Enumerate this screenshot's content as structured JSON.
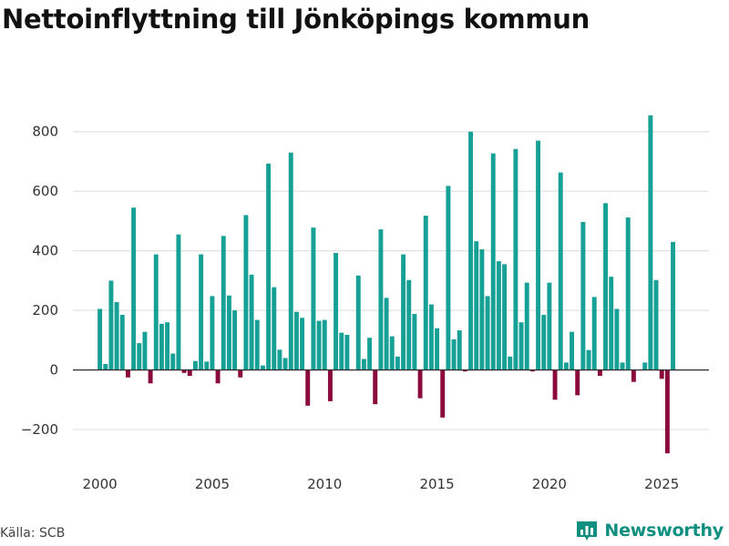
{
  "title": "Nettoinflyttning till Jönköpings kommun",
  "source": "Källa: SCB",
  "brand": {
    "name": "Newsworthy",
    "icon": "bar-chart-icon"
  },
  "colors": {
    "positive": "#16a096",
    "negative": "#8b0a3c",
    "grid": "#dcdcdc",
    "axis": "#333333"
  },
  "chart_data": {
    "type": "bar",
    "title": "Nettoinflyttning till Jönköpings kommun",
    "xlabel": "",
    "ylabel": "",
    "ylim": [
      -310,
      900
    ],
    "yticks": [
      -200,
      0,
      200,
      400,
      600,
      800
    ],
    "ytick_labels": [
      "−200",
      "0",
      "200",
      "400",
      "600",
      "800"
    ],
    "xlim": [
      1998.8,
      2027.1
    ],
    "xticks": [
      2000,
      2005,
      2010,
      2015,
      2020,
      2025
    ],
    "xtick_labels": [
      "2000",
      "2005",
      "2010",
      "2015",
      "2020",
      "2025"
    ],
    "period_start": 2000.0,
    "step": 0.25,
    "bar_width": 0.2,
    "grid": true,
    "legend": "none",
    "values": [
      205,
      20,
      300,
      228,
      185,
      -25,
      545,
      90,
      128,
      -45,
      388,
      155,
      160,
      55,
      455,
      -10,
      -20,
      30,
      388,
      28,
      248,
      -45,
      450,
      250,
      200,
      -25,
      520,
      320,
      168,
      15,
      693,
      278,
      68,
      40,
      730,
      195,
      175,
      -120,
      478,
      165,
      168,
      -105,
      393,
      125,
      118,
      0,
      317,
      37,
      108,
      -115,
      472,
      242,
      113,
      45,
      388,
      302,
      188,
      -95,
      518,
      220,
      140,
      -160,
      618,
      103,
      133,
      -5,
      800,
      432,
      405,
      248,
      727,
      365,
      355,
      45,
      742,
      160,
      293,
      -5,
      770,
      185,
      293,
      -100,
      663,
      25,
      128,
      -85,
      497,
      67,
      245,
      -20,
      560,
      313,
      205,
      25,
      512,
      -40,
      0,
      25,
      855,
      302,
      -30,
      -280,
      430
    ]
  }
}
